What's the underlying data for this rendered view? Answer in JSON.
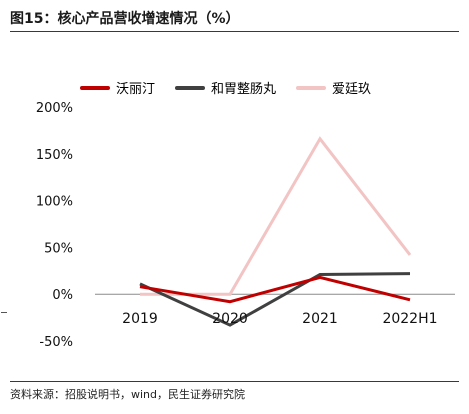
{
  "header": {
    "title": "图15：核心产品营收增速情况（%）"
  },
  "footer": {
    "source": "资料来源：招股说明书，wind，民生证券研究院"
  },
  "chart_data": {
    "type": "line",
    "categories": [
      "2019",
      "2020",
      "2021",
      "2022H1"
    ],
    "series": [
      {
        "name": "沃丽汀",
        "values": [
          8,
          -8,
          18,
          -6
        ],
        "color": "#c00000"
      },
      {
        "name": "和胃整肠丸",
        "values": [
          11,
          -33,
          21,
          22
        ],
        "color": "#404040"
      },
      {
        "name": "爱廷玖",
        "values": [
          0,
          0,
          166,
          42
        ],
        "color": "#f2c4c4"
      }
    ],
    "ylim": [
      -50,
      200
    ],
    "yticks": [
      -50,
      0,
      50,
      100,
      150,
      200
    ],
    "ytick_labels": [
      "-50%",
      "0%",
      "50%",
      "100%",
      "150%",
      "200%"
    ],
    "xlabel": "",
    "ylabel": "",
    "grid": false,
    "legend": "top"
  }
}
